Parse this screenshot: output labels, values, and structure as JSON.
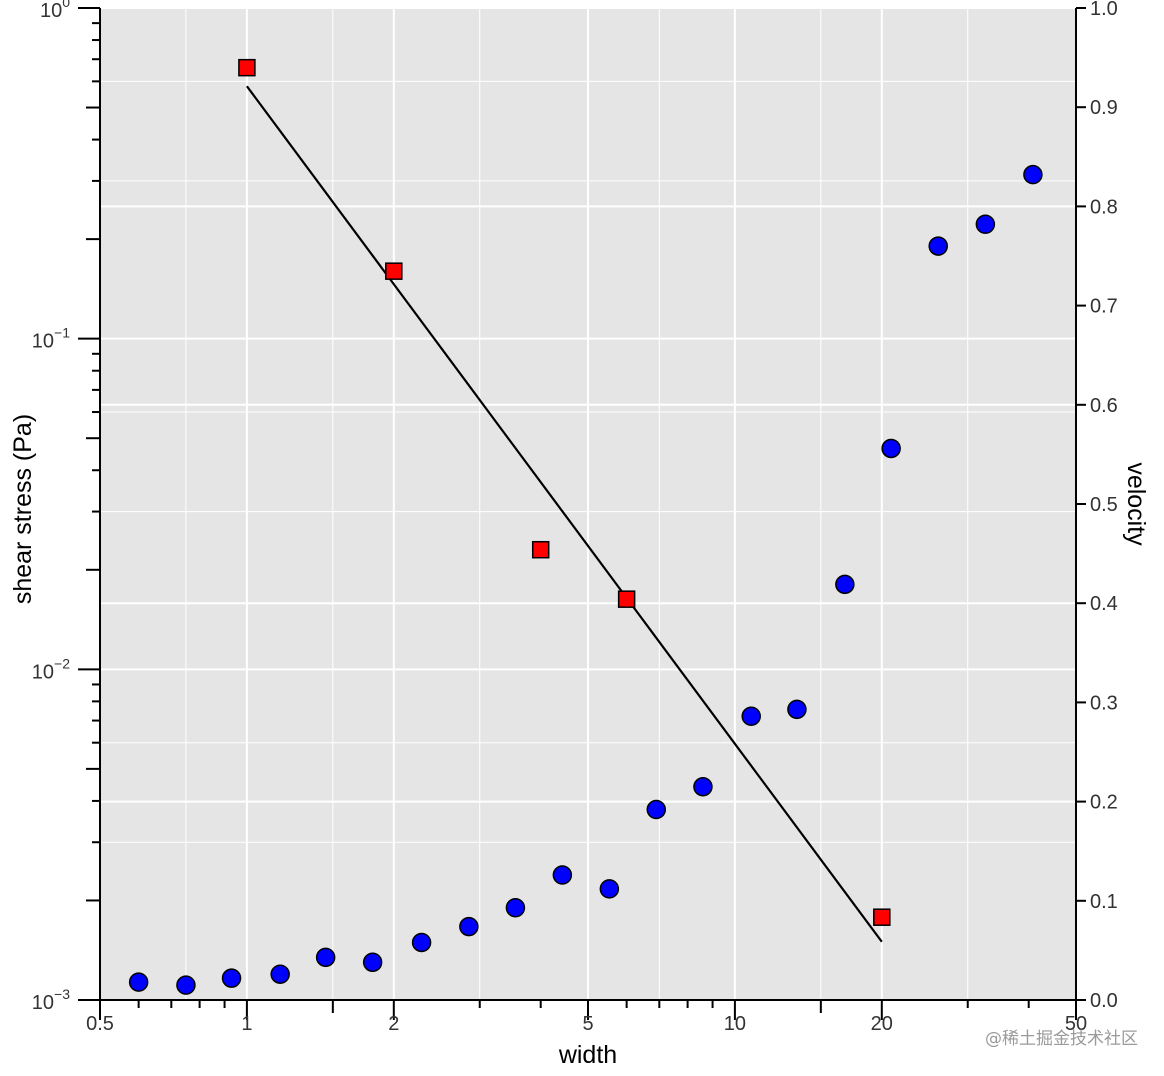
{
  "chart_data": {
    "type": "scatter",
    "xlabel": "width",
    "ylabel": "shear stress (Pa)",
    "y2label": "velocity",
    "x_scale": "log",
    "y_scale": "log",
    "y2_scale": "linear",
    "xlim": [
      0.5,
      50
    ],
    "ylim": [
      0.001,
      1
    ],
    "y2lim": [
      0.0,
      1.0
    ],
    "grid": true,
    "background": "#e5e5e5",
    "x_ticks": [
      {
        "value": 0.5,
        "label": "0.5"
      },
      {
        "value": 1,
        "label": "1"
      },
      {
        "value": 2,
        "label": "2"
      },
      {
        "value": 5,
        "label": "5"
      },
      {
        "value": 10,
        "label": "10"
      },
      {
        "value": 20,
        "label": "20"
      },
      {
        "value": 50,
        "label": "50"
      }
    ],
    "y_ticks": [
      {
        "value": 1,
        "base": "10",
        "exp": "0"
      },
      {
        "value": 0.1,
        "base": "10",
        "exp": "−1"
      },
      {
        "value": 0.01,
        "base": "10",
        "exp": "−2"
      },
      {
        "value": 0.001,
        "base": "10",
        "exp": "−3"
      }
    ],
    "y2_ticks": [
      "0.0",
      "0.1",
      "0.2",
      "0.3",
      "0.4",
      "0.5",
      "0.6",
      "0.7",
      "0.8",
      "0.9",
      "1.0"
    ],
    "series": [
      {
        "marker": "square",
        "color": "#ff0000",
        "axis": "left",
        "points": [
          {
            "x": 1,
            "y": 0.66
          },
          {
            "x": 2,
            "y": 0.16
          },
          {
            "x": 4,
            "y": 0.023
          },
          {
            "x": 6,
            "y": 0.0163
          },
          {
            "x": 20,
            "y": 0.00178
          }
        ]
      },
      {
        "marker": "circle",
        "color": "#0000ff",
        "axis": "right",
        "points": [
          {
            "x": 0.6,
            "y": 0.018
          },
          {
            "x": 0.75,
            "y": 0.015
          },
          {
            "x": 0.93,
            "y": 0.022
          },
          {
            "x": 1.17,
            "y": 0.026
          },
          {
            "x": 1.45,
            "y": 0.043
          },
          {
            "x": 1.81,
            "y": 0.038
          },
          {
            "x": 2.28,
            "y": 0.058
          },
          {
            "x": 2.85,
            "y": 0.074
          },
          {
            "x": 3.55,
            "y": 0.093
          },
          {
            "x": 4.43,
            "y": 0.126
          },
          {
            "x": 5.53,
            "y": 0.112
          },
          {
            "x": 6.9,
            "y": 0.192
          },
          {
            "x": 8.6,
            "y": 0.215
          },
          {
            "x": 10.8,
            "y": 0.286
          },
          {
            "x": 13.4,
            "y": 0.293
          },
          {
            "x": 16.8,
            "y": 0.419
          },
          {
            "x": 20.9,
            "y": 0.556
          },
          {
            "x": 26.1,
            "y": 0.76
          },
          {
            "x": 32.6,
            "y": 0.782
          },
          {
            "x": 40.8,
            "y": 0.832
          }
        ]
      }
    ],
    "fit_line": {
      "color": "#000000",
      "from": {
        "x": 1,
        "y": 0.58
      },
      "to": {
        "x": 20,
        "y": 0.0015
      }
    }
  },
  "watermark": "@稀土掘金技术社区"
}
